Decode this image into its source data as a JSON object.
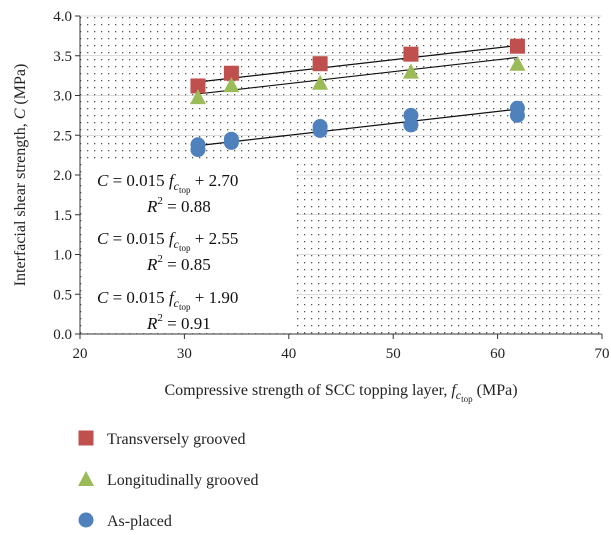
{
  "chart_data": {
    "type": "scatter",
    "xlabel_parts": {
      "before": "Compressive strength of SCC topping layer, ",
      "f": "f",
      "sub": "c",
      "subsub": "top",
      "after": " (MPa)"
    },
    "ylabel_parts": {
      "before": "Interfacial shear strength, ",
      "var": "C",
      "after": " (MPa)"
    },
    "xlim": [
      20,
      70
    ],
    "ylim": [
      0.0,
      4.0
    ],
    "xticks": [
      "20",
      "30",
      "40",
      "50",
      "60",
      "70"
    ],
    "yticks": [
      "0.0",
      "0.5",
      "1.0",
      "1.5",
      "2.0",
      "2.5",
      "3.0",
      "3.5",
      "4.0"
    ],
    "grid": "dotted",
    "legend_position": "bottom",
    "series": [
      {
        "name": "Transversely grooved",
        "marker": "square",
        "color": "#c0504d",
        "points": [
          [
            31.3,
            3.12
          ],
          [
            34.5,
            3.28
          ],
          [
            43.0,
            3.4
          ],
          [
            51.7,
            3.52
          ],
          [
            61.9,
            3.62
          ]
        ],
        "fit": {
          "slope": 0.015,
          "intercept": 2.7,
          "x_range": [
            31.3,
            61.9
          ]
        }
      },
      {
        "name": "Longitudinally grooved",
        "marker": "triangle",
        "color": "#9bbb59",
        "points": [
          [
            31.3,
            2.98
          ],
          [
            34.5,
            3.13
          ],
          [
            43.0,
            3.16
          ],
          [
            51.7,
            3.3
          ],
          [
            61.9,
            3.4
          ]
        ],
        "fit": {
          "slope": 0.015,
          "intercept": 2.55,
          "x_range": [
            31.3,
            61.9
          ]
        }
      },
      {
        "name": "As-placed",
        "marker": "circle",
        "color": "#4f81bd",
        "points": [
          [
            31.3,
            2.32
          ],
          [
            31.3,
            2.38
          ],
          [
            34.5,
            2.41
          ],
          [
            34.5,
            2.45
          ],
          [
            43.0,
            2.56
          ],
          [
            43.0,
            2.61
          ],
          [
            51.7,
            2.63
          ],
          [
            51.7,
            2.75
          ],
          [
            61.9,
            2.75
          ],
          [
            61.9,
            2.84
          ]
        ],
        "fit": {
          "slope": 0.015,
          "intercept": 1.9,
          "x_range": [
            31.3,
            61.9
          ]
        }
      }
    ],
    "equations": [
      {
        "lhs": "C",
        "eq": " = 0.015 ",
        "f": "f",
        "sub": "c",
        "subsub": "top",
        "tail": " + 2.70",
        "r2_label": "R",
        "r2_sup": "2",
        "r2_value": " = 0.88"
      },
      {
        "lhs": "C",
        "eq": " = 0.015 ",
        "f": "f",
        "sub": "c",
        "subsub": "top",
        "tail": " + 2.55",
        "r2_label": "R",
        "r2_sup": "2",
        "r2_value": " = 0.85"
      },
      {
        "lhs": "C",
        "eq": " = 0.015 ",
        "f": "f",
        "sub": "c",
        "subsub": "top",
        "tail": " + 1.90",
        "r2_label": "R",
        "r2_sup": "2",
        "r2_value": " = 0.91"
      }
    ]
  }
}
